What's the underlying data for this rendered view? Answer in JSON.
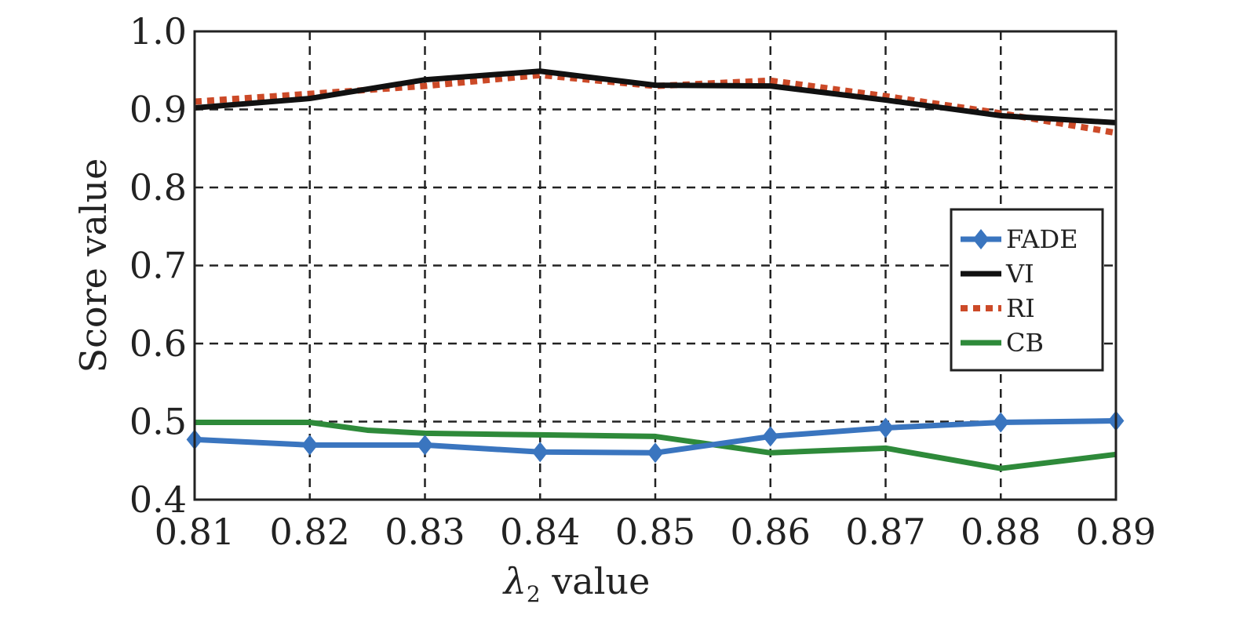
{
  "chart_data": {
    "type": "line",
    "xlabel": "value",
    "xlabel_symbol": "λ",
    "xlabel_subscript": "2",
    "ylabel": "Score value",
    "x": [
      0.81,
      0.82,
      0.83,
      0.84,
      0.85,
      0.86,
      0.87,
      0.88,
      0.89
    ],
    "x_tick_labels": [
      "0.81",
      "0.82",
      "0.83",
      "0.84",
      "0.85",
      "0.86",
      "0.87",
      "0.88",
      "0.89"
    ],
    "xlim": [
      0.81,
      0.89
    ],
    "ylim": [
      0.4,
      1.0
    ],
    "y_ticks": [
      0.4,
      0.5,
      0.6,
      0.7,
      0.8,
      0.9,
      1.0
    ],
    "y_tick_labels": [
      "0.4",
      "0.5",
      "0.6",
      "0.7",
      "0.8",
      "0.9",
      "1.0"
    ],
    "grid": true,
    "grid_style": "dashed",
    "legend_position": "right",
    "series": [
      {
        "name": "FADE",
        "color": "#3a75bf",
        "style": "solid",
        "marker": "diamond",
        "x": [
          0.81,
          0.82,
          0.83,
          0.84,
          0.85,
          0.86,
          0.87,
          0.88,
          0.89
        ],
        "y": [
          0.477,
          0.47,
          0.47,
          0.461,
          0.46,
          0.481,
          0.492,
          0.499,
          0.501
        ]
      },
      {
        "name": "VI",
        "color": "#111111",
        "style": "solid",
        "marker": "none",
        "x": [
          0.81,
          0.82,
          0.83,
          0.84,
          0.85,
          0.86,
          0.87,
          0.88,
          0.89
        ],
        "y": [
          0.902,
          0.914,
          0.938,
          0.949,
          0.931,
          0.93,
          0.912,
          0.892,
          0.883
        ]
      },
      {
        "name": "RI",
        "color": "#cc4a28",
        "style": "dotted",
        "marker": "none",
        "x": [
          0.81,
          0.82,
          0.83,
          0.84,
          0.85,
          0.86,
          0.87,
          0.88,
          0.89
        ],
        "y": [
          0.91,
          0.92,
          0.93,
          0.944,
          0.93,
          0.937,
          0.917,
          0.895,
          0.87
        ]
      },
      {
        "name": "CB",
        "color": "#2e8a3a",
        "style": "solid",
        "marker": "none",
        "x": [
          0.81,
          0.815,
          0.82,
          0.825,
          0.83,
          0.84,
          0.85,
          0.86,
          0.87,
          0.88,
          0.89
        ],
        "y": [
          0.499,
          0.499,
          0.499,
          0.489,
          0.485,
          0.483,
          0.481,
          0.46,
          0.466,
          0.44,
          0.458
        ]
      }
    ]
  }
}
